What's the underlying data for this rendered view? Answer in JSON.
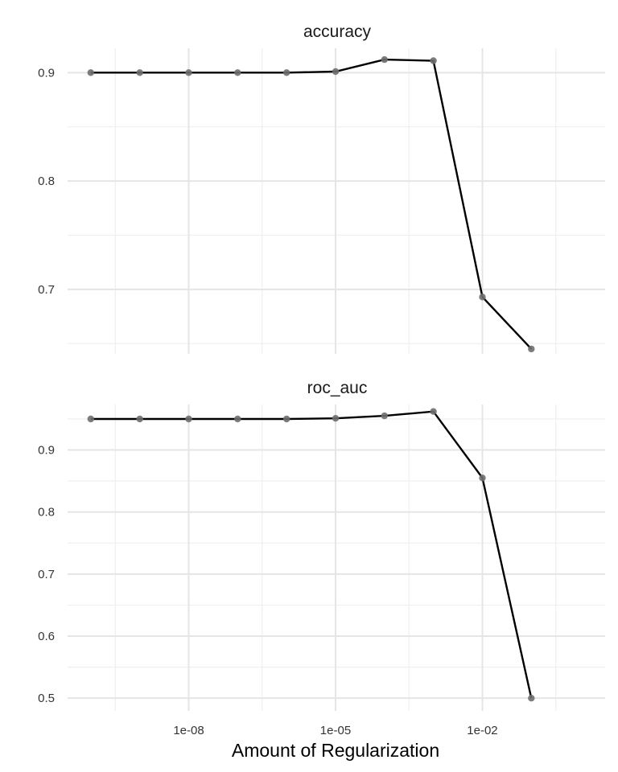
{
  "chart_data": [
    {
      "type": "line",
      "title": "accuracy",
      "x_scale": "log10",
      "x": [
        1e-10,
        1e-09,
        1e-08,
        1e-07,
        1e-06,
        1e-05,
        0.0001,
        0.001,
        0.01,
        0.1
      ],
      "series": [
        {
          "values": [
            0.9,
            0.9,
            0.9,
            0.9,
            0.9,
            0.901,
            0.912,
            0.911,
            0.693,
            0.645
          ]
        }
      ],
      "yticks": [
        0.7,
        0.8,
        0.9
      ],
      "ytick_labels": [
        "0.7",
        "0.8",
        "0.9"
      ],
      "grid": true
    },
    {
      "type": "line",
      "title": "roc_auc",
      "x_scale": "log10",
      "x": [
        1e-10,
        1e-09,
        1e-08,
        1e-07,
        1e-06,
        1e-05,
        0.0001,
        0.001,
        0.01,
        0.1
      ],
      "series": [
        {
          "values": [
            0.95,
            0.95,
            0.95,
            0.95,
            0.95,
            0.951,
            0.955,
            0.962,
            0.855,
            0.5
          ]
        }
      ],
      "yticks": [
        0.5,
        0.6,
        0.7,
        0.8,
        0.9
      ],
      "ytick_labels": [
        "0.5",
        "0.6",
        "0.7",
        "0.8",
        "0.9"
      ],
      "grid": true
    }
  ],
  "x_axis": {
    "label": "Amount of Regularization",
    "ticks": [
      1e-08,
      1e-05,
      0.01
    ],
    "tick_labels": [
      "1e-08",
      "1e-05",
      "1e-02"
    ]
  },
  "colors": {
    "line": "#000000",
    "point": "#6e6e6e",
    "grid": "#e5e5e5"
  }
}
